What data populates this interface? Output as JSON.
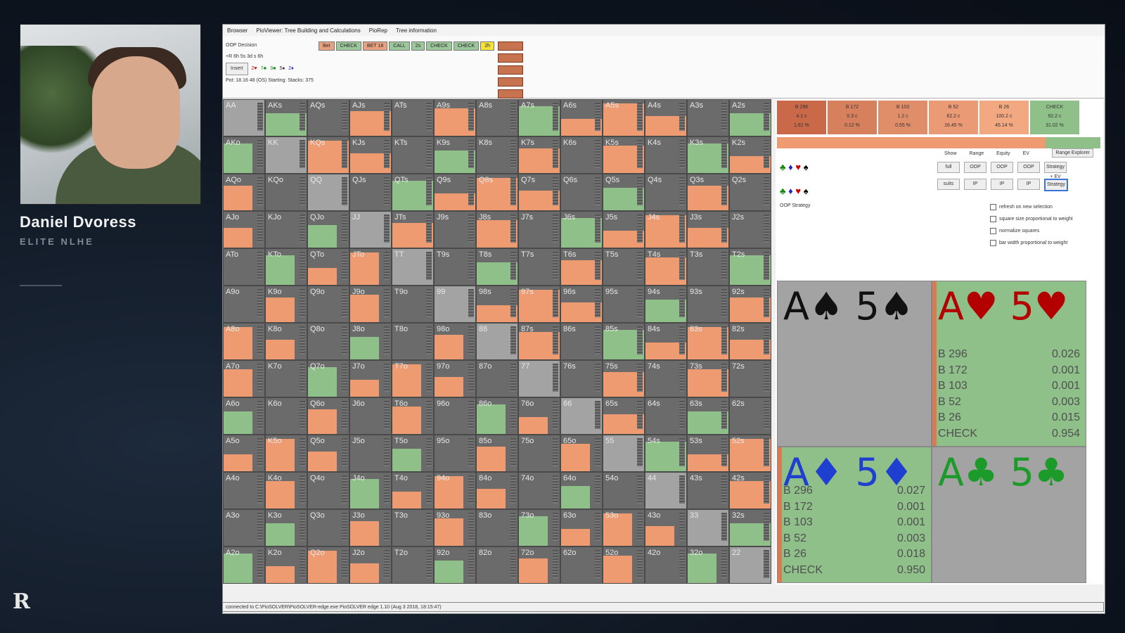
{
  "presenter": {
    "name": "Daniel Dvoress",
    "subtitle": "ELITE NLHE"
  },
  "logo": {
    "mark": "R"
  },
  "menu": [
    "Browser",
    "PioViewer: Tree Building and Calculations",
    "PioRep",
    "Tree information"
  ],
  "toolbar": {
    "line1": "OOP Decision",
    "line2": "+R 6h 5s 3d s 6h",
    "insert": "Insert",
    "line3": "Pot: 18.16 48 (OS) Starting: Stacks: 375",
    "actions": [
      {
        "label": "Bet",
        "color": "#e9a27f"
      },
      {
        "label": "CHECK",
        "color": "#9cc79a"
      },
      {
        "label": "BET 18",
        "color": "#e9a27f"
      },
      {
        "label": "CALL",
        "color": "#9cc79a"
      },
      {
        "label": "2s",
        "color": "#9cc79a"
      },
      {
        "label": "CHECK",
        "color": "#9cc79a"
      },
      {
        "label": "CHECK",
        "color": "#9cc79a"
      },
      {
        "label": "2h",
        "color": "#f4e23d"
      }
    ]
  },
  "matrix": [
    [
      "AA",
      "AKs",
      "AQs",
      "AJs",
      "ATs",
      "A9s",
      "A8s",
      "A7s",
      "A6s",
      "A5s",
      "A4s",
      "A3s",
      "A2s"
    ],
    [
      "AKo",
      "KK",
      "KQs",
      "KJs",
      "KTs",
      "K9s",
      "K8s",
      "K7s",
      "K6s",
      "K5s",
      "K4s",
      "K3s",
      "K2s"
    ],
    [
      "AQo",
      "KQo",
      "QQ",
      "QJs",
      "QTs",
      "Q9s",
      "Q8s",
      "Q7s",
      "Q6s",
      "Q5s",
      "Q4s",
      "Q3s",
      "Q2s"
    ],
    [
      "AJo",
      "KJo",
      "QJo",
      "JJ",
      "JTs",
      "J9s",
      "J8s",
      "J7s",
      "J6s",
      "J5s",
      "J4s",
      "J3s",
      "J2s"
    ],
    [
      "ATo",
      "KTo",
      "QTo",
      "JTo",
      "TT",
      "T9s",
      "T8s",
      "T7s",
      "T6s",
      "T5s",
      "T4s",
      "T3s",
      "T2s"
    ],
    [
      "A9o",
      "K9o",
      "Q9o",
      "J9o",
      "T9o",
      "99",
      "98s",
      "97s",
      "96s",
      "95s",
      "94s",
      "93s",
      "92s"
    ],
    [
      "A8o",
      "K8o",
      "Q8o",
      "J8o",
      "T8o",
      "98o",
      "88",
      "87s",
      "86s",
      "85s",
      "84s",
      "83s",
      "82s"
    ],
    [
      "A7o",
      "K7o",
      "Q7o",
      "J7o",
      "T7o",
      "97o",
      "87o",
      "77",
      "76s",
      "75s",
      "74s",
      "73s",
      "72s"
    ],
    [
      "A6o",
      "K6o",
      "Q6o",
      "J6o",
      "T6o",
      "96o",
      "86o",
      "76o",
      "66",
      "65s",
      "64s",
      "63s",
      "62s"
    ],
    [
      "A5o",
      "K5o",
      "Q5o",
      "J5o",
      "T5o",
      "95o",
      "85o",
      "75o",
      "65o",
      "55",
      "54s",
      "53s",
      "52s"
    ],
    [
      "A4o",
      "K4o",
      "Q4o",
      "J4o",
      "T4o",
      "94o",
      "84o",
      "74o",
      "64o",
      "54o",
      "44",
      "43s",
      "42s"
    ],
    [
      "A3o",
      "K3o",
      "Q3o",
      "J3o",
      "T3o",
      "93o",
      "83o",
      "73o",
      "63o",
      "53o",
      "43o",
      "33",
      "32s"
    ],
    [
      "A2o",
      "K2o",
      "Q2o",
      "J2o",
      "T2o",
      "92o",
      "82o",
      "72o",
      "62o",
      "52o",
      "42o",
      "32o",
      "22"
    ]
  ],
  "strategy": [
    {
      "name": "B 296",
      "freq": "4.1 c",
      "pct": "1.61 %",
      "color": "#c9694a"
    },
    {
      "name": "B 172",
      "freq": "0.3 c",
      "pct": "0.12 %",
      "color": "#d7805e"
    },
    {
      "name": "B 103",
      "freq": "1.2 c",
      "pct": "0.55 %",
      "color": "#e08e6a"
    },
    {
      "name": "B 52",
      "freq": "62.2 c",
      "pct": "16.45 %",
      "color": "#ea9a74"
    },
    {
      "name": "B 26",
      "freq": "100.2 c",
      "pct": "45.14 %",
      "color": "#f2a880"
    },
    {
      "name": "CHECK",
      "freq": "92.2 c",
      "pct": "31.02 %",
      "color": "#8fc08a"
    }
  ],
  "controls": {
    "headers": [
      "Show",
      "Range",
      "Equity",
      "EV"
    ],
    "row1": [
      "full",
      "OOP",
      "OOP",
      "OOP"
    ],
    "row2": [
      "suits",
      "IP",
      "IP",
      "IP"
    ],
    "side": [
      "Range Explorer",
      "Strategy + EV",
      "Strategy"
    ],
    "checks": [
      "refresh on new selection",
      "square size proportional to weight",
      "normalize squares",
      "bar width proportional to weight"
    ],
    "oop_label": "OOP Strategy"
  },
  "combos": [
    {
      "title": "A♠ 5♠",
      "color": "#111111",
      "bg": "#a3a3a3",
      "rows": []
    },
    {
      "title": "A♥ 5♥",
      "color": "#b30000",
      "bg": "#8fc08a",
      "rows": [
        [
          "B 296",
          "0.026"
        ],
        [
          "B 172",
          "0.001"
        ],
        [
          "B 103",
          "0.001"
        ],
        [
          "B 52",
          "0.003"
        ],
        [
          "B 26",
          "0.015"
        ],
        [
          "CHECK",
          "0.954"
        ]
      ]
    },
    {
      "title": "A♦ 5♦",
      "color": "#1f3fd1",
      "bg": "#8fc08a",
      "rows": [
        [
          "B 296",
          "0.027"
        ],
        [
          "B 172",
          "0.001"
        ],
        [
          "B 103",
          "0.001"
        ],
        [
          "B 52",
          "0.003"
        ],
        [
          "B 26",
          "0.018"
        ],
        [
          "CHECK",
          "0.950"
        ]
      ]
    },
    {
      "title": "A♣ 5♣",
      "color": "#1c9b2a",
      "bg": "#a3a3a3",
      "rows": []
    }
  ],
  "status": "connected to C:\\PioSOLVER\\PioSOLVER-edge.exe PioSOLVER edge 1.10 (Aug 3 2018, 18:15:47)"
}
